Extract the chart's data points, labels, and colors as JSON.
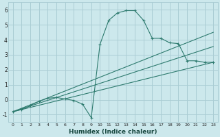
{
  "title": "",
  "xlabel": "Humidex (Indice chaleur)",
  "ylabel": "",
  "bg_color": "#cce8ec",
  "grid_color": "#aacdd4",
  "line_color": "#2d7a6e",
  "xlim": [
    -0.5,
    23.5
  ],
  "ylim": [
    -1.5,
    6.5
  ],
  "xticks": [
    0,
    1,
    2,
    3,
    4,
    5,
    6,
    7,
    8,
    9,
    10,
    11,
    12,
    13,
    14,
    15,
    16,
    17,
    18,
    19,
    20,
    21,
    22,
    23
  ],
  "yticks": [
    -1,
    0,
    1,
    2,
    3,
    4,
    5,
    6
  ],
  "series": [
    {
      "x": [
        0,
        1,
        2,
        3,
        4,
        5,
        6,
        7,
        8,
        9,
        10,
        11,
        12,
        13,
        14,
        15,
        16,
        17,
        18,
        19,
        20,
        21,
        22,
        23
      ],
      "y": [
        -0.8,
        -0.65,
        -0.4,
        -0.1,
        0.1,
        0.15,
        0.05,
        -0.05,
        -0.3,
        -1.2,
        3.7,
        5.3,
        5.8,
        5.95,
        5.95,
        5.3,
        4.1,
        4.1,
        3.8,
        3.75,
        2.6,
        2.6,
        2.5,
        2.5
      ],
      "has_markers": true
    },
    {
      "x": [
        0,
        23
      ],
      "y": [
        -0.8,
        4.5
      ],
      "has_markers": false
    },
    {
      "x": [
        0,
        23
      ],
      "y": [
        -0.8,
        3.55
      ],
      "has_markers": false
    },
    {
      "x": [
        0,
        23
      ],
      "y": [
        -0.8,
        2.5
      ],
      "has_markers": false
    }
  ]
}
